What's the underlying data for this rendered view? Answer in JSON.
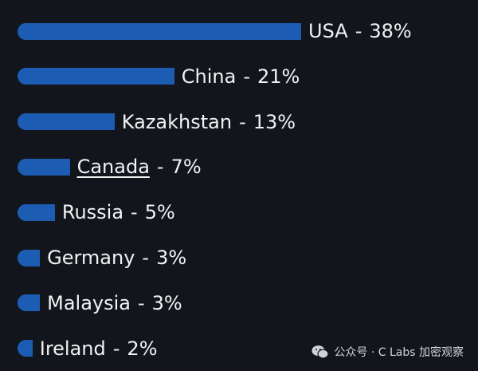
{
  "chart_data": {
    "type": "bar",
    "orientation": "horizontal",
    "categories": [
      "USA",
      "China",
      "Kazakhstan",
      "Canada",
      "Russia",
      "Germany",
      "Malaysia",
      "Ireland"
    ],
    "values": [
      38,
      21,
      13,
      7,
      5,
      3,
      3,
      2
    ],
    "value_labels": [
      "38%",
      "21%",
      "13%",
      "7%",
      "5%",
      "3%",
      "3%",
      "2%"
    ],
    "separator": "-",
    "color": "#1c5db3",
    "underlined_categories": [
      3
    ]
  },
  "watermark": "公众号 · C Labs 加密观察"
}
